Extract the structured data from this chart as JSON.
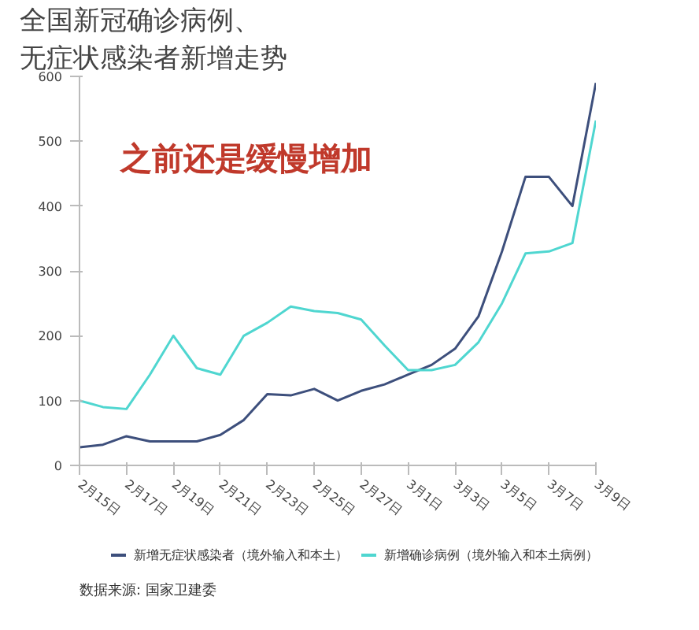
{
  "chart_data": {
    "type": "line",
    "title": "全国新冠确诊病例、",
    "subtitle": "无症状感染者新增走势",
    "categories": [
      "2月15日",
      null,
      "2月17日",
      null,
      "2月19日",
      null,
      "2月21日",
      null,
      "2月23日",
      null,
      "2月25日",
      null,
      "2月27日",
      null,
      "3月1日",
      null,
      "3月3日",
      null,
      "3月5日",
      null,
      "3月7日",
      null,
      "3月9日"
    ],
    "series": [
      {
        "name": "新增无症状感染者（境外输入和本土）",
        "color": "#3d4f7c",
        "values": [
          28,
          32,
          45,
          37,
          37,
          37,
          47,
          70,
          110,
          108,
          118,
          100,
          115,
          125,
          140,
          155,
          180,
          230,
          330,
          445,
          445,
          400,
          590
        ]
      },
      {
        "name": "新增确诊病例（境外输入和本土病例）",
        "color": "#4fd6d0",
        "values": [
          100,
          90,
          87,
          140,
          200,
          150,
          140,
          200,
          220,
          245,
          238,
          235,
          225,
          185,
          147,
          147,
          155,
          190,
          250,
          327,
          330,
          343,
          532
        ]
      }
    ],
    "ylim": [
      0,
      600
    ],
    "yticks": [
      0,
      100,
      200,
      300,
      400,
      500,
      600
    ],
    "legend": "bottom",
    "annotations": [
      "之前还是缓慢增加",
      "数据来源: 国家卫建委"
    ]
  }
}
